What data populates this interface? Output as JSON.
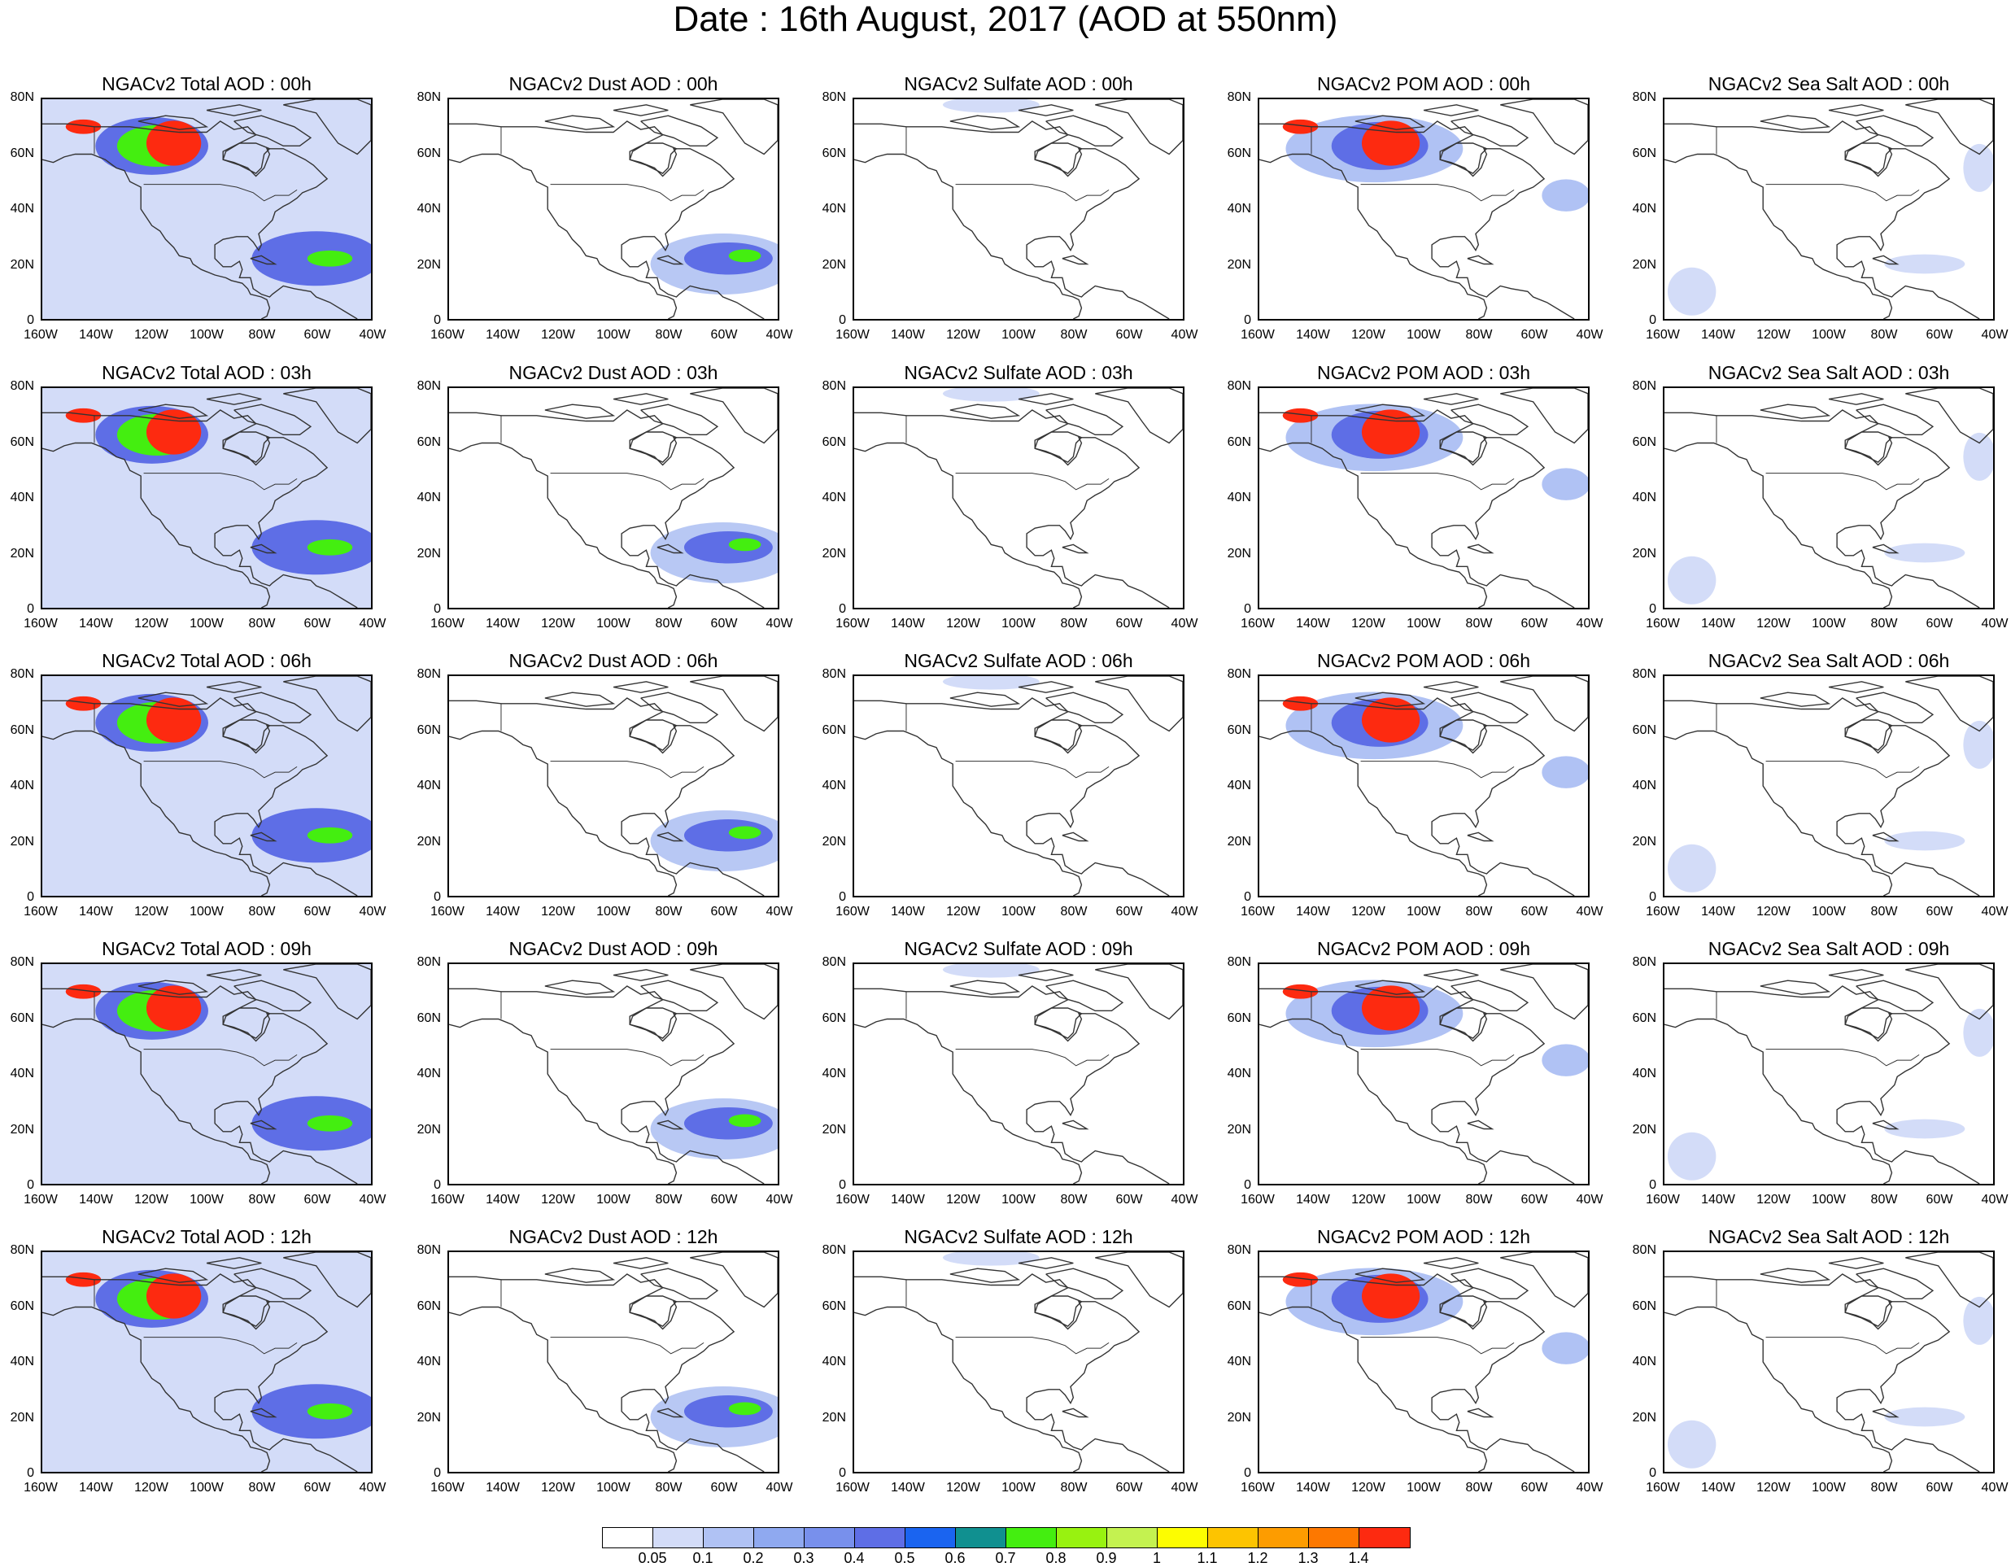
{
  "title": "Date : 16th August, 2017 (AOD at 550nm)",
  "panels": [
    [
      "NGACv2 Total AOD : 00h",
      "NGACv2 Dust AOD : 00h",
      "NGACv2 Sulfate AOD : 00h",
      "NGACv2 POM AOD : 00h",
      "NGACv2 Sea Salt AOD : 00h"
    ],
    [
      "NGACv2 Total AOD : 03h",
      "NGACv2 Dust AOD : 03h",
      "NGACv2 Sulfate AOD : 03h",
      "NGACv2 POM AOD : 03h",
      "NGACv2 Sea Salt AOD : 03h"
    ],
    [
      "NGACv2 Total AOD : 06h",
      "NGACv2 Dust AOD : 06h",
      "NGACv2 Sulfate AOD : 06h",
      "NGACv2 POM AOD : 06h",
      "NGACv2 Sea Salt AOD : 06h"
    ],
    [
      "NGACv2 Total AOD : 09h",
      "NGACv2 Dust AOD : 09h",
      "NGACv2 Sulfate AOD : 09h",
      "NGACv2 POM AOD : 09h",
      "NGACv2 Sea Salt  AOD : 09h"
    ],
    [
      "NGACv2 Total AOD  : 12h",
      "NGACv2 Dust AOD : 12h",
      "NGACv2 Sulfate AOD : 12h",
      "NGACv2 POM  AOD : 12h",
      "NGACv2 Sea Salt  AOD : 12h"
    ]
  ],
  "y_ticks": [
    "80N",
    "60N",
    "40N",
    "20N",
    "0"
  ],
  "x_ticks": [
    "160W",
    "140W",
    "120W",
    "100W",
    "80W",
    "60W",
    "40W"
  ],
  "legend": {
    "labels": [
      "0.05",
      "0.1",
      "0.2",
      "0.3",
      "0.4",
      "0.5",
      "0.6",
      "0.7",
      "0.8",
      "0.9",
      "1",
      "1.1",
      "1.2",
      "1.3",
      "1.4"
    ],
    "colors": [
      "#ffffff",
      "#d3dcf8",
      "#b0c2f4",
      "#8fa9f0",
      "#7890ec",
      "#5e6ee6",
      "#1a64f0",
      "#109090",
      "#44ee10",
      "#98f210",
      "#c4f250",
      "#fdfd00",
      "#fdc400",
      "#fd9c00",
      "#fd7800",
      "#fd2a10"
    ]
  },
  "map_colors": {
    "ocean_dust": "#b8c8f4",
    "fire_low": "#5e6ee6",
    "fire_mid": "#44ee10",
    "fire_high": "#fd2a10",
    "fire_orange": "#fd9c00"
  }
}
